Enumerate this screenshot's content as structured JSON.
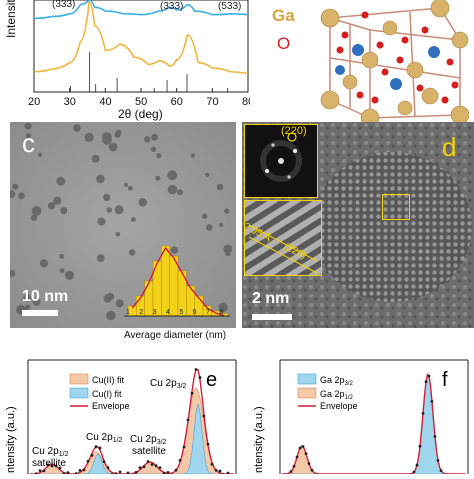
{
  "colors": {
    "blue_curve": "#3ab0e2",
    "orange_curve": "#f0b43a",
    "ga_atom": "#d9b26a",
    "o_atom": "#d41f1f",
    "cu_atom": "#2f6fbf",
    "panel_letter_d": "#f4d400",
    "hist_fill": "#f4d21a",
    "cu2_fill": "#f4c9a8",
    "cu1_fill": "#9fd6ee",
    "envelope": "#d11f3a"
  },
  "panel_a": {
    "ylabel": "Intensity",
    "xlabel": "2θ (deg)",
    "xticks": [
      "20",
      "30",
      "40",
      "50",
      "60",
      "70",
      "80"
    ],
    "peak_labels": [
      "(333)",
      "(533)"
    ]
  },
  "panel_b": {
    "legend_ga": "Ga",
    "legend_o": "O"
  },
  "panel_c": {
    "letter": "c",
    "scale_bar": "10 nm",
    "hist_xlabel": "Average diameter (nm)",
    "hist_ticks": [
      "1",
      "2",
      "3",
      "4",
      "5",
      "6",
      "7",
      "8"
    ]
  },
  "panel_d": {
    "letter": "d",
    "fft_label": "(220)",
    "inset_spacing": "2.95 Å",
    "inset_plane": "(220)",
    "scale_bar": "2 nm"
  },
  "panel_e": {
    "letter": "e",
    "ylabel": "Intensity (a.u.)",
    "legend": [
      "Cu(II) fit",
      "Cu(I) fit",
      "Envelope"
    ],
    "annot_p32": "Cu 2p",
    "annot_p32_sub": "3/2",
    "annot_p12": "Cu 2p",
    "annot_p12_sub": "1/2",
    "annot_sat12_a": "Cu 2p",
    "annot_sat12_sub": "1/2",
    "annot_sat12_b": "satellite",
    "annot_sat32_a": "Cu 2p",
    "annot_sat32_sub": "3/2",
    "annot_sat32_b": "satellite"
  },
  "panel_f": {
    "letter": "f",
    "ylabel": "Intensity (a.u.)",
    "legend_ga32": "Ga 2p",
    "legend_ga32_sub": "3/2",
    "legend_ga12": "Ga 2p",
    "legend_ga12_sub": "1/2",
    "legend_env": "Envelope"
  },
  "chart_data": [
    {
      "type": "line",
      "xlabel": "2θ (deg)",
      "ylabel": "Intensity",
      "xlim": [
        20,
        80
      ],
      "series": [
        {
          "x": [
            20,
            25,
            30,
            33,
            35.5,
            37,
            40,
            45,
            50,
            55,
            58,
            60,
            63,
            65,
            70,
            75,
            80
          ],
          "values": [
            0.8,
            0.82,
            0.85,
            0.95,
            1.0,
            0.92,
            0.88,
            0.85,
            0.84,
            0.88,
            0.92,
            0.89,
            0.95,
            0.88,
            0.84,
            0.85,
            0.84
          ]
        },
        {
          "x": [
            20,
            25,
            30,
            33,
            35.5,
            37,
            40,
            44,
            48,
            52,
            55,
            58,
            60,
            63,
            66,
            70,
            75,
            80
          ],
          "values": [
            0.22,
            0.25,
            0.32,
            0.55,
            0.98,
            0.72,
            0.45,
            0.52,
            0.38,
            0.3,
            0.34,
            0.28,
            0.35,
            0.62,
            0.32,
            0.26,
            0.22,
            0.2
          ]
        }
      ]
    },
    {
      "type": "bar",
      "xlabel": "Average diameter (nm)",
      "categories": [
        "1.5",
        "2",
        "2.5",
        "3",
        "3.5",
        "4",
        "4.5",
        "5",
        "5.5",
        "6",
        "6.5",
        "7"
      ],
      "values": [
        2,
        4,
        7,
        11,
        14,
        12,
        9,
        6,
        4,
        2,
        1,
        0.5
      ]
    }
  ]
}
